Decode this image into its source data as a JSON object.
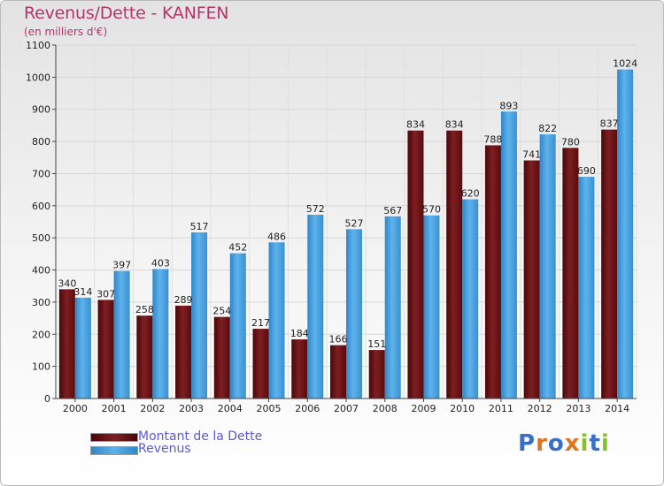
{
  "title": "Revenus/Dette - KANFEN",
  "subtitle": "(en milliers d'€)",
  "legend": {
    "dette": "Montant de la Dette",
    "revenus": "Revenus"
  },
  "logo": {
    "text": "Proxiti"
  },
  "colors": {
    "dette": "#6b1012",
    "revenus": "#4aa3e0"
  },
  "chart_data": {
    "type": "bar",
    "categories": [
      "2000",
      "2001",
      "2002",
      "2003",
      "2004",
      "2005",
      "2006",
      "2007",
      "2008",
      "2009",
      "2010",
      "2011",
      "2012",
      "2013",
      "2014"
    ],
    "series": [
      {
        "name": "Montant de la Dette",
        "values": [
          340,
          307,
          258,
          289,
          254,
          217,
          184,
          166,
          151,
          834,
          834,
          788,
          741,
          780,
          837
        ]
      },
      {
        "name": "Revenus",
        "values": [
          314,
          397,
          403,
          517,
          452,
          486,
          572,
          527,
          567,
          570,
          620,
          893,
          822,
          690,
          1024
        ]
      }
    ],
    "ylim": [
      0,
      1100
    ],
    "yticks": [
      0,
      100,
      200,
      300,
      400,
      500,
      600,
      700,
      800,
      900,
      1000,
      1100
    ],
    "grid": true,
    "legend_position": "bottom-left"
  }
}
